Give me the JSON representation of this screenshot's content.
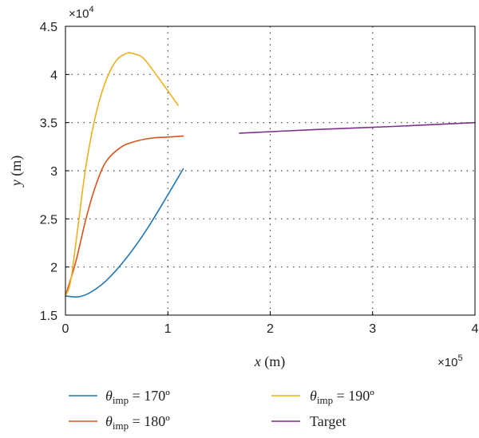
{
  "chart_data": {
    "type": "line",
    "xlabel": "x (m)",
    "xlabel_var": "x",
    "xlabel_unit": "(m)",
    "ylabel": "y (m)",
    "ylabel_var": "y",
    "ylabel_unit": "(m)",
    "x_multiplier": "×10",
    "x_multiplier_exp": "5",
    "y_multiplier": "×10",
    "y_multiplier_exp": "4",
    "xlim": [
      0,
      400000
    ],
    "ylim": [
      15000,
      45000
    ],
    "x_ticks": [
      0,
      100000,
      200000,
      300000,
      400000
    ],
    "x_tick_labels": [
      "0",
      "1",
      "2",
      "3",
      "4"
    ],
    "y_ticks": [
      15000,
      20000,
      25000,
      30000,
      35000,
      40000,
      45000
    ],
    "y_tick_labels": [
      "1.5",
      "2",
      "2.5",
      "3",
      "3.5",
      "4",
      "4.5"
    ],
    "grid": true,
    "legend_position": "bottom",
    "series": [
      {
        "name": "θimp = 170º",
        "name_symbol": "θ",
        "name_sub": "imp",
        "name_rest": " = 170º",
        "color": "#1f77b4",
        "x": [
          0,
          8000,
          15000,
          25000,
          40000,
          60000,
          80000,
          100000,
          115000
        ],
        "y": [
          17000,
          16900,
          16950,
          17400,
          18600,
          21000,
          24000,
          27500,
          30200
        ]
      },
      {
        "name": "θimp = 180º",
        "name_symbol": "θ",
        "name_sub": "imp",
        "name_rest": " = 180º",
        "color": "#d95319",
        "x": [
          0,
          10000,
          20000,
          30000,
          40000,
          55000,
          70000,
          85000,
          100000,
          115000
        ],
        "y": [
          17000,
          20500,
          25000,
          28600,
          31000,
          32500,
          33100,
          33400,
          33500,
          33600
        ]
      },
      {
        "name": "θimp = 190º",
        "name_symbol": "θ",
        "name_sub": "imp",
        "name_rest": " = 190º",
        "color": "#edb120",
        "x": [
          0,
          5000,
          12000,
          20000,
          30000,
          40000,
          50000,
          60000,
          65000,
          75000,
          85000,
          100000,
          110000
        ],
        "y": [
          17000,
          18500,
          24000,
          30500,
          36000,
          39500,
          41500,
          42200,
          42200,
          41800,
          40500,
          38300,
          36800
        ]
      },
      {
        "name": "Target",
        "color": "#7e2f8e",
        "x": [
          170000,
          250000,
          320000,
          400000
        ],
        "y": [
          33900,
          34300,
          34600,
          35000
        ]
      }
    ]
  }
}
